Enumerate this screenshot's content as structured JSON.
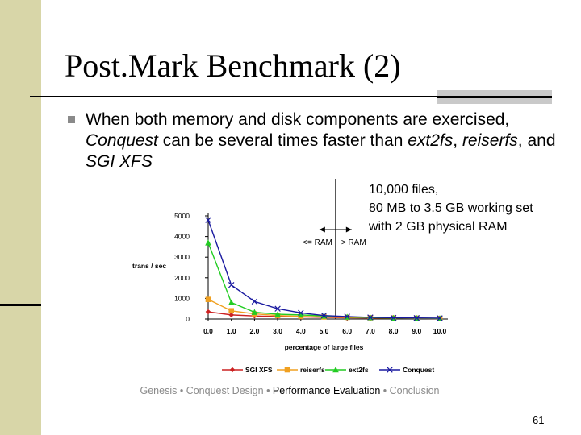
{
  "slide": {
    "title": "Post.Mark Benchmark (2)",
    "bullet_parts": [
      "When both memory and disk components are exercised, ",
      "Conquest",
      " can be several times faster than ",
      "ext2fs",
      ", ",
      "reiserfs",
      ", and ",
      "SGI XFS"
    ],
    "note_lines": [
      "10,000 files,",
      "80 MB to 3.5 GB working set",
      "with 2 GB physical RAM"
    ],
    "footer": {
      "items": [
        "Genesis",
        "Conquest Design",
        "Performance Evaluation",
        "Conclusion"
      ],
      "separator": "•",
      "highlighted": "Performance Evaluation"
    },
    "page_number": "61"
  },
  "colors": {
    "side_band": "#d8d6a8",
    "SGI XFS": "#cc2222",
    "reiserfs": "#f0a020",
    "ext2fs": "#22cc22",
    "Conquest": "#1a1aa0"
  },
  "chart_data": {
    "type": "line",
    "xlabel": "percentage of large files",
    "ylabel": "trans / sec",
    "x": [
      0.0,
      1.0,
      2.0,
      3.0,
      4.0,
      5.0,
      6.0,
      7.0,
      8.0,
      9.0,
      10.0
    ],
    "x_tick_labels": [
      "0.0",
      "1.0",
      "2.0",
      "3.0",
      "4.0",
      "5.0",
      "6.0",
      "7.0",
      "8.0",
      "9.0",
      "10.0"
    ],
    "ylim": [
      0,
      5000
    ],
    "y_ticks": [
      0,
      1000,
      2000,
      3000,
      4000,
      5000
    ],
    "legend_position": "bottom",
    "series": [
      {
        "name": "SGI XFS",
        "marker": "diamond",
        "values": [
          350,
          200,
          150,
          120,
          100,
          80,
          60,
          50,
          40,
          30,
          20
        ]
      },
      {
        "name": "reiserfs",
        "marker": "square",
        "values": [
          950,
          400,
          250,
          170,
          130,
          100,
          80,
          60,
          50,
          40,
          30
        ]
      },
      {
        "name": "ext2fs",
        "marker": "triangle",
        "values": [
          3700,
          800,
          330,
          230,
          200,
          150,
          100,
          70,
          50,
          40,
          30
        ]
      },
      {
        "name": "Conquest",
        "marker": "x",
        "values": [
          4800,
          1650,
          850,
          500,
          300,
          170,
          120,
          80,
          60,
          50,
          40
        ]
      }
    ],
    "annotations": {
      "divider_x": 5.5,
      "left_label": "<= RAM",
      "right_label": "> RAM"
    }
  }
}
